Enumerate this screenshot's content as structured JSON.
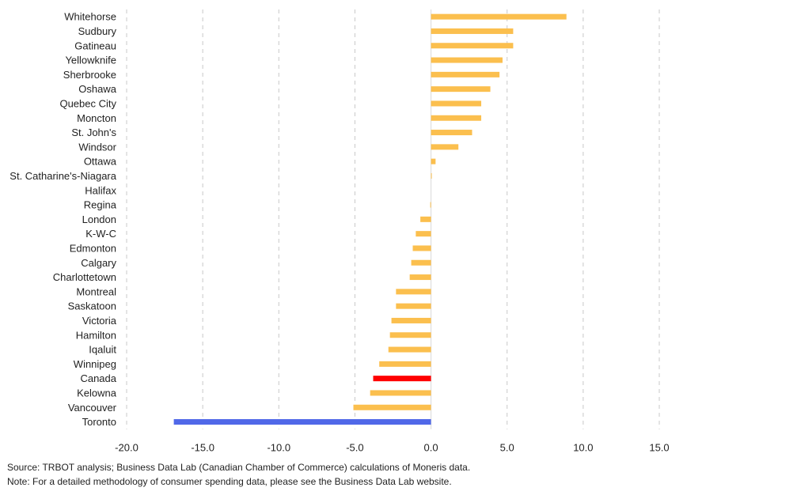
{
  "chart_data": {
    "type": "bar",
    "orientation": "horizontal",
    "categories": [
      "Whitehorse",
      "Sudbury",
      "Gatineau",
      "Yellowknife",
      "Sherbrooke",
      "Oshawa",
      "Quebec City",
      "Moncton",
      "St. John's",
      "Windsor",
      "Ottawa",
      "St. Catharine's-Niagara",
      "Halifax",
      "Regina",
      "London",
      "K-W-C",
      "Edmonton",
      "Calgary",
      "Charlottetown",
      "Montreal",
      "Saskatoon",
      "Victoria",
      "Hamilton",
      "Iqaluit",
      "Winnipeg",
      "Canada",
      "Kelowna",
      "Vancouver",
      "Toronto"
    ],
    "values": [
      8.9,
      5.4,
      5.4,
      4.7,
      4.5,
      3.9,
      3.3,
      3.3,
      2.7,
      1.8,
      0.3,
      0.05,
      0.0,
      -0.05,
      -0.7,
      -1.0,
      -1.2,
      -1.3,
      -1.4,
      -2.3,
      -2.3,
      -2.6,
      -2.7,
      -2.8,
      -3.4,
      -3.8,
      -4.0,
      -5.1,
      -16.9
    ],
    "colors": {
      "default": "#FBBF4E",
      "Canada": "#FF0000",
      "Toronto": "#5068E8"
    },
    "xlim": [
      -20,
      15
    ],
    "xticks": [
      -20,
      -15,
      -10,
      -5,
      0,
      5,
      10,
      15
    ],
    "xtick_labels": [
      "-20.0",
      "-15.0",
      "-10.0",
      "-5.0",
      "0.0",
      "5.0",
      "10.0",
      "15.0"
    ],
    "grid": "vertical-dashed",
    "title": "",
    "xlabel": "",
    "ylabel": ""
  },
  "notes": {
    "source": "Source: TRBOT analysis; Business Data Lab (Canadian Chamber of Commerce) calculations of Moneris data.",
    "note": "Note: For a detailed methodology of consumer spending data, please see the Business Data Lab website."
  }
}
